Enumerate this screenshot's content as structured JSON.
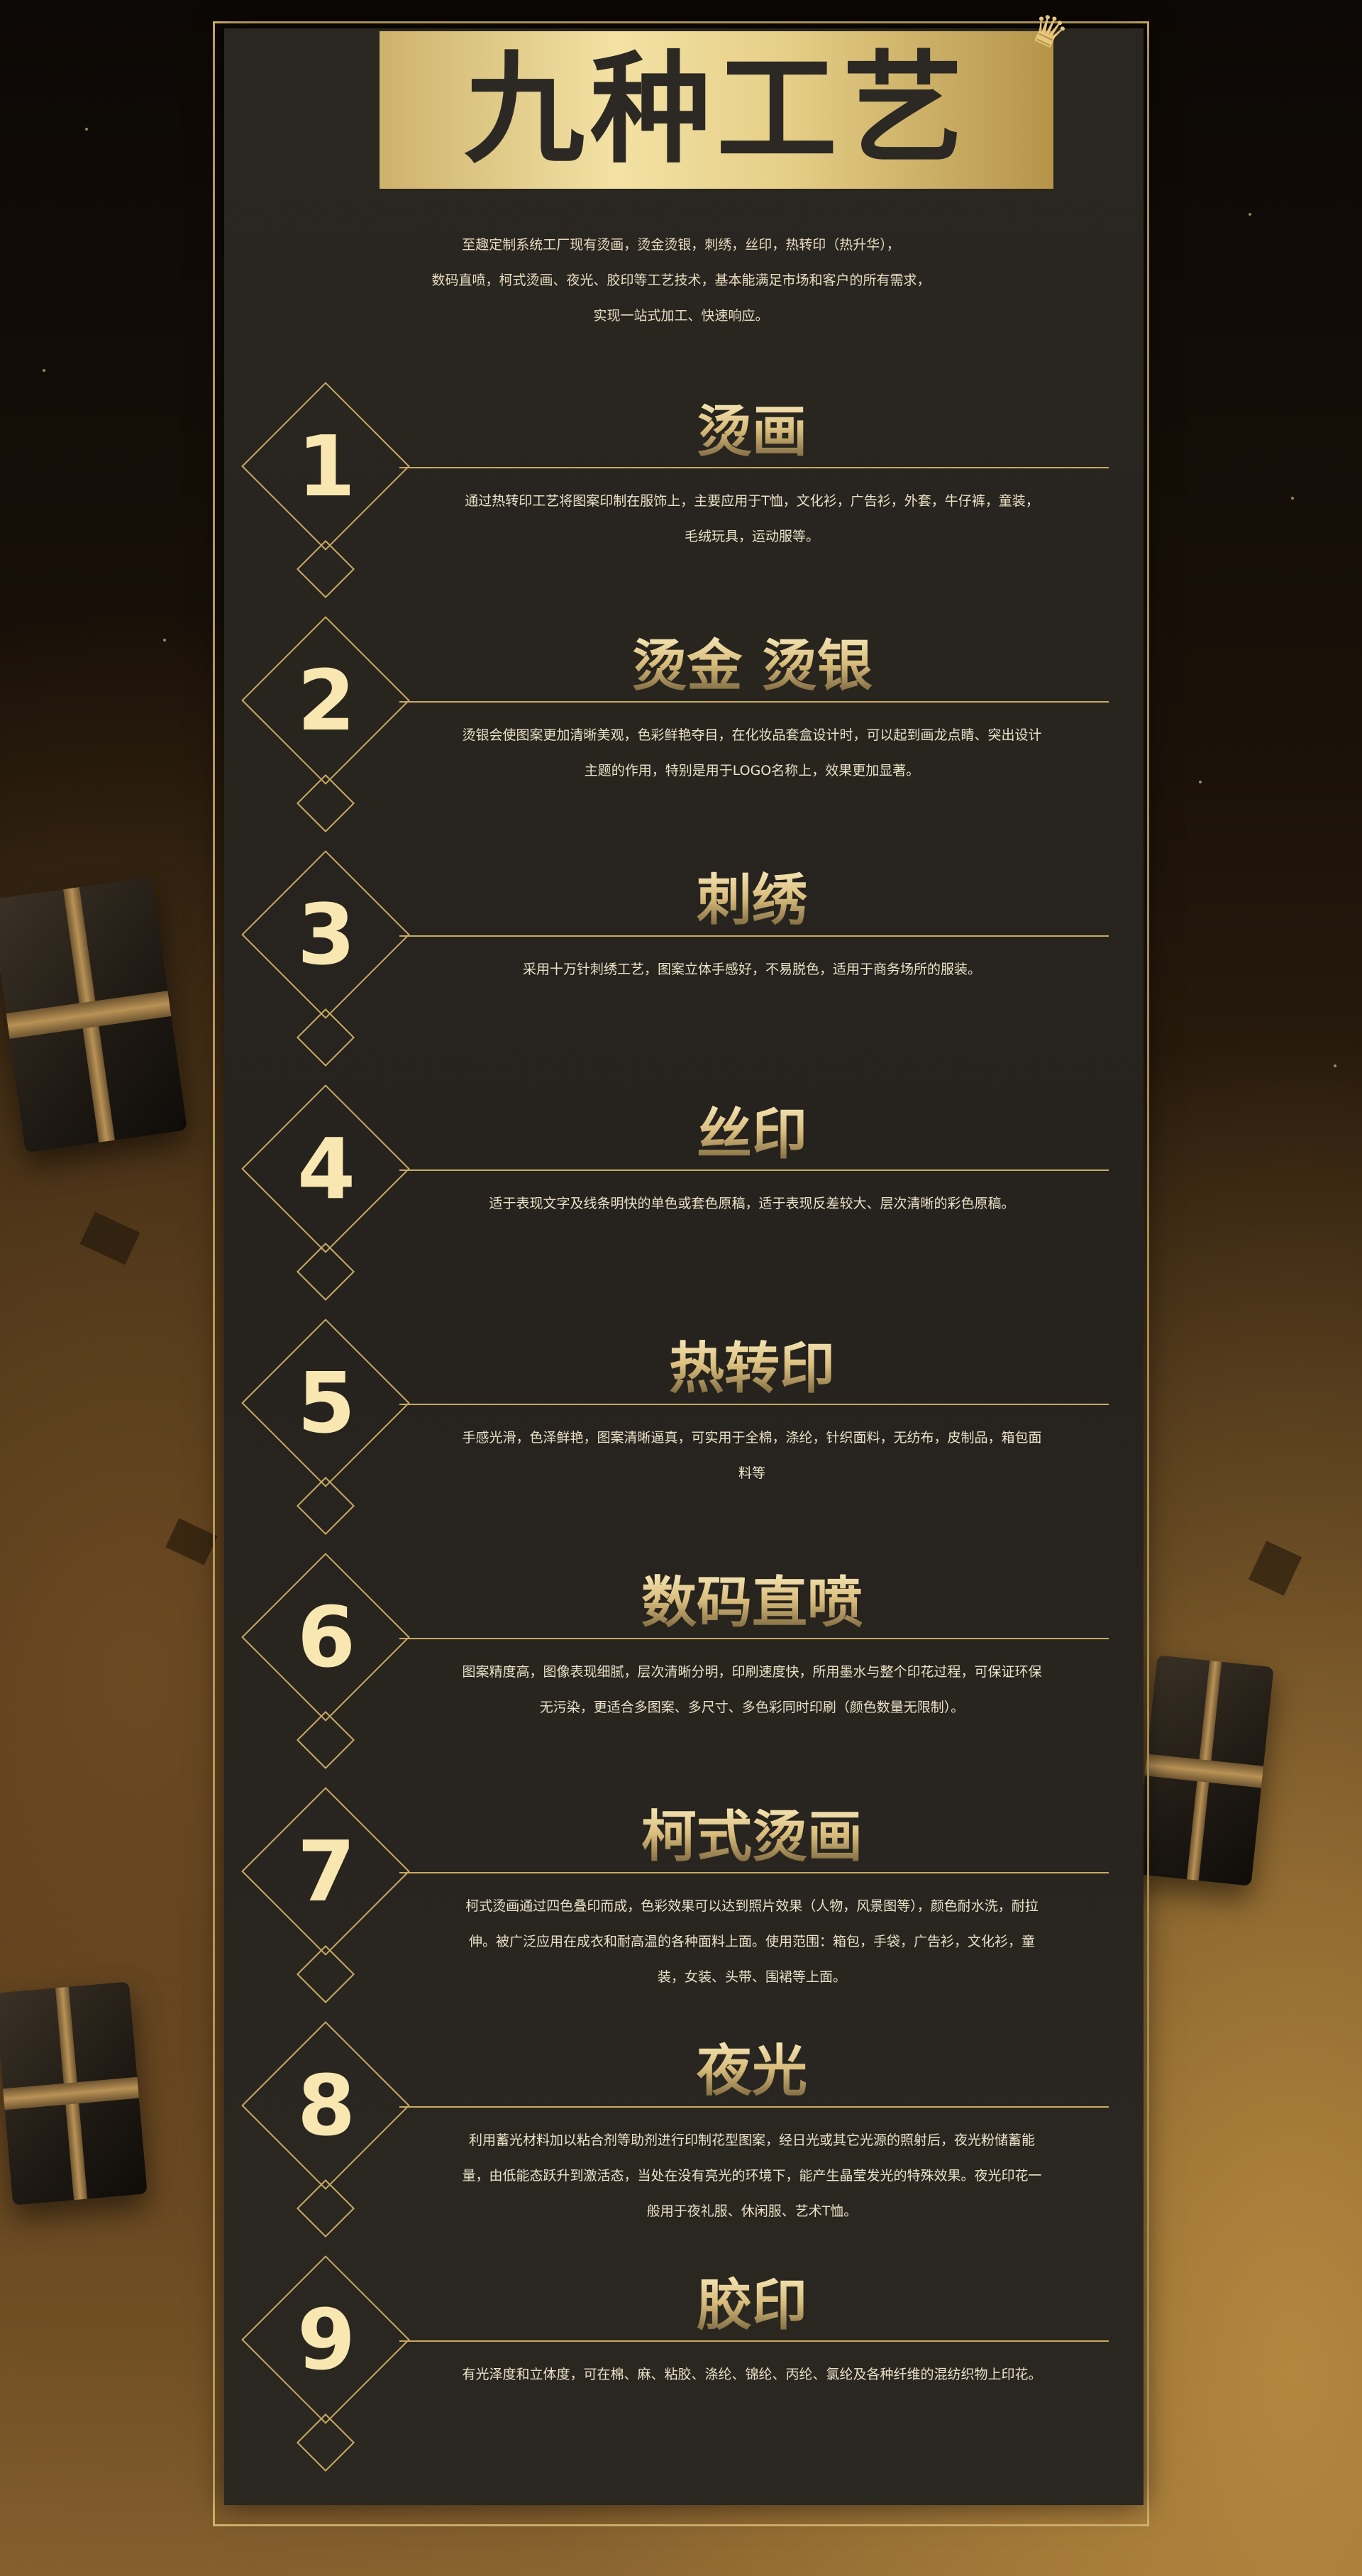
{
  "title": "九种工艺",
  "intro_lines": [
    "至趣定制系统工厂现有烫画，烫金烫银，刺绣，丝印，热转印（热升华），",
    "数码直喷，柯式烫画、夜光、胶印等工艺技术，基本能满足市场和客户的所有需求，",
    "实现一站式加工、快速响应。"
  ],
  "crafts": [
    {
      "number": "1",
      "title": "烫画",
      "desc": "通过热转印工艺将图案印制在服饰上，主要应用于T恤，文化衫，广告衫，外套，牛仔裤，童装，毛绒玩具，运动服等。"
    },
    {
      "number": "2",
      "title": "烫金 烫银",
      "desc": "烫银会使图案更加清晰美观，色彩鲜艳夺目，在化妆品套盒设计时，可以起到画龙点睛、突出设计主题的作用，特别是用于LOGO名称上，效果更加显著。"
    },
    {
      "number": "3",
      "title": "刺绣",
      "desc": "采用十万针刺绣工艺，图案立体手感好，不易脱色，适用于商务场所的服装。"
    },
    {
      "number": "4",
      "title": "丝印",
      "desc": "适于表现文字及线条明快的单色或套色原稿，适于表现反差较大、层次清晰的彩色原稿。"
    },
    {
      "number": "5",
      "title": "热转印",
      "desc": "手感光滑，色泽鲜艳，图案清晰逼真，可实用于全棉，涤纶，针织面料，无纺布，皮制品，箱包面料等"
    },
    {
      "number": "6",
      "title": "数码直喷",
      "desc": "图案精度高，图像表现细腻，层次清晰分明，印刷速度快，所用墨水与整个印花过程，可保证环保无污染，更适合多图案、多尺寸、多色彩同时印刷（颜色数量无限制）。"
    },
    {
      "number": "7",
      "title": "柯式烫画",
      "desc": "柯式烫画通过四色叠印而成，色彩效果可以达到照片效果（人物，风景图等），颜色耐水洗，耐拉伸。被广泛应用在成衣和耐高温的各种面料上面。使用范围：箱包，手袋，广告衫，文化衫，童装，女装、头带、围裙等上面。"
    },
    {
      "number": "8",
      "title": "夜光",
      "desc": "利用蓄光材料加以粘合剂等助剂进行印制花型图案，经日光或其它光源的照射后，夜光粉储蓄能量，由低能态跃升到激活态，当处在没有亮光的环境下，能产生晶莹发光的特殊效果。夜光印花一般用于夜礼服、休闲服、艺术T恤。"
    },
    {
      "number": "9",
      "title": "胶印",
      "desc": "有光泽度和立体度，可在棉、麻、粘胶、涤纶、锦纶、丙纶、氯纶及各种纤维的混纺织物上印花。"
    }
  ],
  "colors": {
    "gold": "#c9aa64",
    "number": "#f8e7b0",
    "panel": "#2a2620"
  },
  "icons": {
    "crown": "crown-icon",
    "gift": "gift-box-icon"
  }
}
